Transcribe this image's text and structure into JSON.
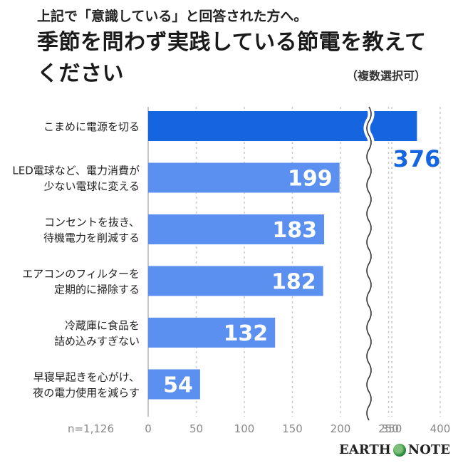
{
  "header": {
    "subtitle": "上記で「意識している」と回答された方へ。",
    "title": "季節を問わず実践している節電を教えてください",
    "note": "（複数選択可）"
  },
  "footer": {
    "sample_size": "n=1,126",
    "brand": "EARTH NOTE",
    "brand_left": "EARTH",
    "brand_right": "NOTE"
  },
  "colors": {
    "highlight": "#1565e0",
    "bar": "#5b8ff0",
    "grid": "#cccccc"
  },
  "chart_data": {
    "type": "bar",
    "orientation": "horizontal",
    "axis_break": "between 200 and 350",
    "categories": [
      [
        "こまめに電源を切る"
      ],
      [
        "LED電球など、電力消費が",
        "少ない電球に変える"
      ],
      [
        "コンセントを抜き、",
        "待機電力を削減する"
      ],
      [
        "エアコンのフィルターを",
        "定期的に掃除する"
      ],
      [
        "冷蔵庫に食品を",
        "詰め込みすぎない"
      ],
      [
        "早寝早起きを心がけ、",
        "夜の電力使用を減らす"
      ]
    ],
    "values": [
      376,
      199,
      183,
      182,
      132,
      54
    ],
    "x_ticks": [
      "0",
      "50",
      "100",
      "150",
      "200",
      "250",
      "350",
      "400"
    ],
    "xlim": [
      0,
      400
    ],
    "grid": true
  }
}
